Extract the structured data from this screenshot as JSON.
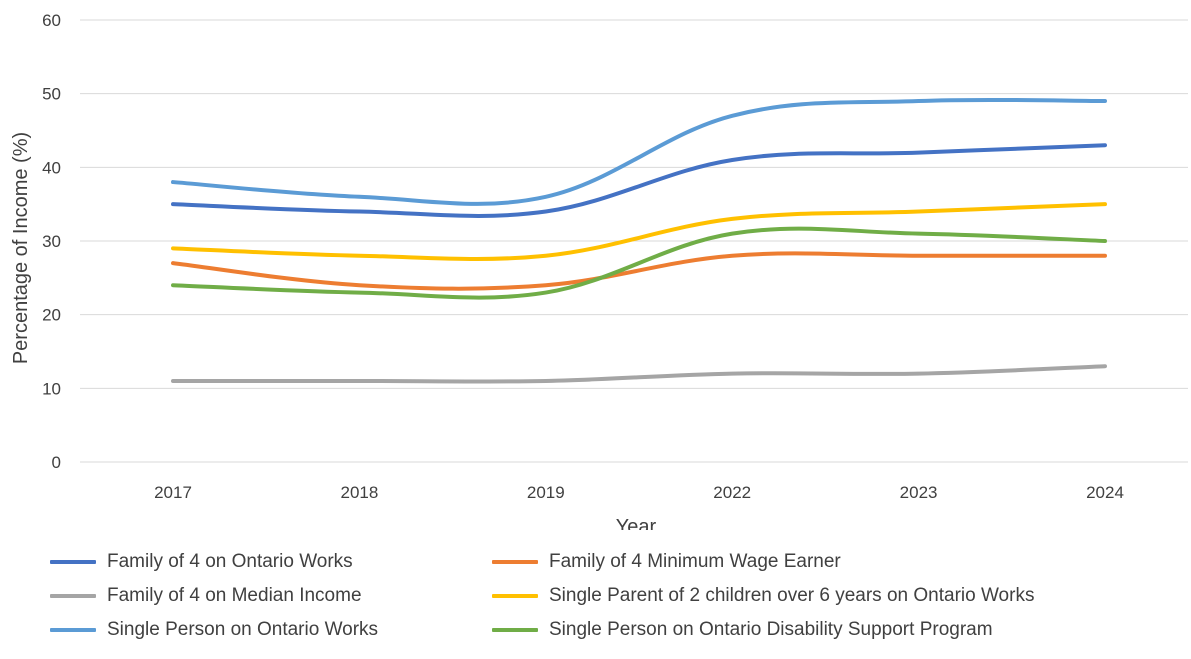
{
  "chart_data": {
    "type": "line",
    "title": "",
    "xlabel": "Year",
    "ylabel": "Percentage of Income (%)",
    "categories": [
      "2017",
      "2018",
      "2019",
      "2022",
      "2023",
      "2024"
    ],
    "ylim": [
      0,
      60
    ],
    "yticks": [
      0,
      10,
      20,
      30,
      40,
      50,
      60
    ],
    "grid": true,
    "legend_position": "bottom",
    "series": [
      {
        "name": "Family of 4 on Ontario Works",
        "color": "#4472C4",
        "values": [
          35,
          34,
          34,
          41,
          42,
          43
        ]
      },
      {
        "name": "Family of 4 Minimum Wage Earner",
        "color": "#ED7D31",
        "values": [
          27,
          24,
          24,
          28,
          28,
          28
        ]
      },
      {
        "name": "Family of 4 on Median Income",
        "color": "#A5A5A5",
        "values": [
          11,
          11,
          11,
          12,
          12,
          13
        ]
      },
      {
        "name": "Single Parent of 2 children over 6 years on Ontario Works",
        "color": "#FFC000",
        "values": [
          29,
          28,
          28,
          33,
          34,
          35
        ]
      },
      {
        "name": "Single Person on Ontario Works",
        "color": "#5B9BD5",
        "values": [
          38,
          36,
          36,
          47,
          49,
          49
        ]
      },
      {
        "name": "Single Person on Ontario Disability Support Program",
        "color": "#70AD47",
        "values": [
          24,
          23,
          23,
          31,
          31,
          30
        ]
      }
    ]
  }
}
